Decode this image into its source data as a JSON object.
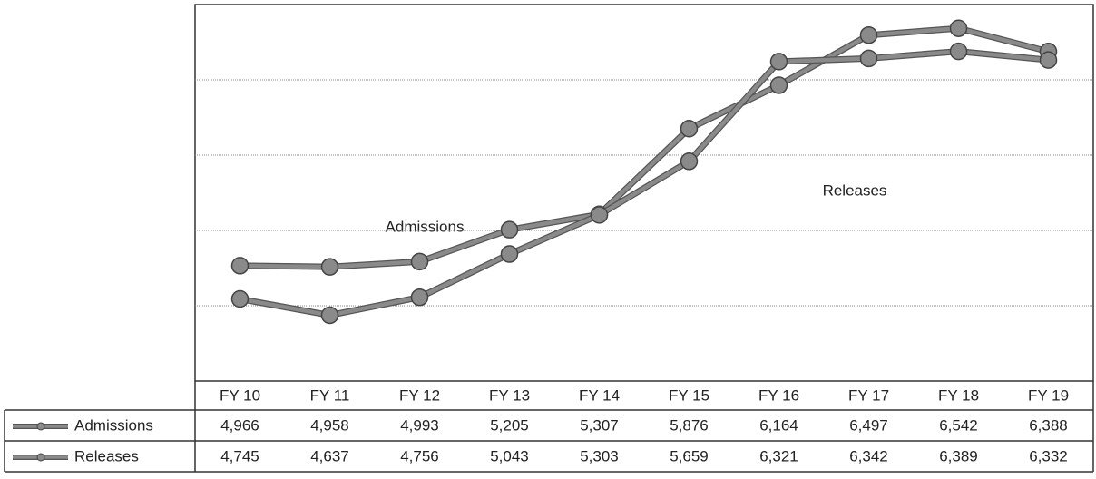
{
  "chart_data": {
    "type": "line",
    "categories": [
      "FY 10",
      "FY 11",
      "FY 12",
      "FY 13",
      "FY 14",
      "FY 15",
      "FY 16",
      "FY 17",
      "FY 18",
      "FY 19"
    ],
    "series": [
      {
        "name": "Admissions",
        "color": "#8a8a8a",
        "values": [
          4966,
          4958,
          4993,
          5205,
          5307,
          5876,
          6164,
          6497,
          6542,
          6388
        ],
        "value_labels": [
          "4,966",
          "4,958",
          "4,993",
          "5,205",
          "5,307",
          "5,876",
          "6,164",
          "6,497",
          "6,542",
          "6,388"
        ]
      },
      {
        "name": "Releases",
        "color": "#8a8a8a",
        "values": [
          4745,
          4637,
          4756,
          5043,
          5303,
          5659,
          6321,
          6342,
          6389,
          6332
        ],
        "value_labels": [
          "4,745",
          "4,637",
          "4,756",
          "5,043",
          "5,303",
          "5,659",
          "6,321",
          "6,342",
          "6,389",
          "6,332"
        ]
      }
    ],
    "annotations": [
      "Admissions",
      "Releases"
    ],
    "ylim": [
      4200,
      6700
    ],
    "yticks": [
      4700,
      5200,
      5700,
      6200
    ],
    "grid": true
  }
}
